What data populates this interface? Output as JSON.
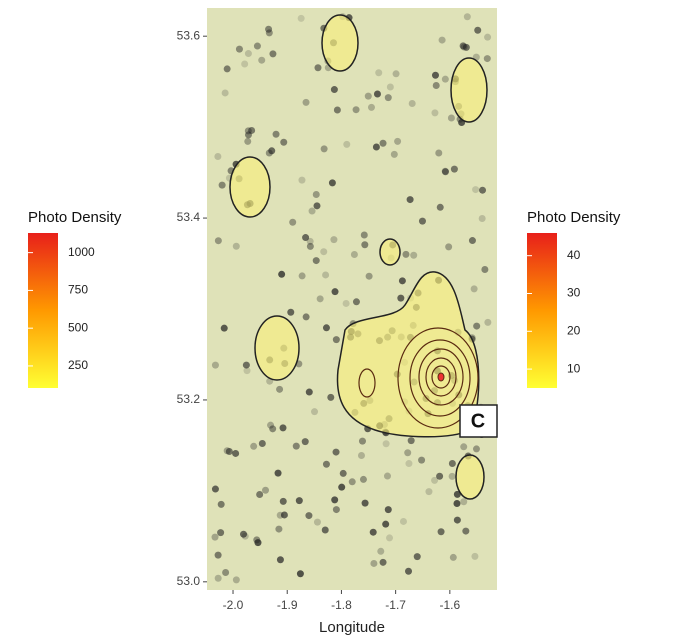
{
  "chart_data": {
    "type": "density-map",
    "x_label": "Longitude",
    "xlim": [
      -2.048,
      -1.513
    ],
    "ylim": [
      52.991,
      53.631
    ],
    "xticks": [
      {
        "value": -2.0,
        "label": "-2.0"
      },
      -1.9,
      -1.8,
      -1.7,
      -1.6
    ],
    "yticks": [
      {
        "value": 53.0,
        "label": "53.0"
      },
      53.2,
      53.4,
      53.6
    ],
    "annotation": "C",
    "legends": [
      {
        "title": "Photo Density",
        "lim": [
          104,
          1130
        ],
        "ticks": [
          250,
          500,
          750,
          1000
        ],
        "colors": [
          "#ffff33",
          "#ff9900",
          "#e8201a"
        ]
      },
      {
        "title": "Photo Density",
        "lim": [
          5,
          46
        ],
        "ticks": [
          10,
          20,
          30,
          40
        ],
        "colors": [
          "#ffff33",
          "#ff9900",
          "#e8201a"
        ]
      }
    ]
  }
}
